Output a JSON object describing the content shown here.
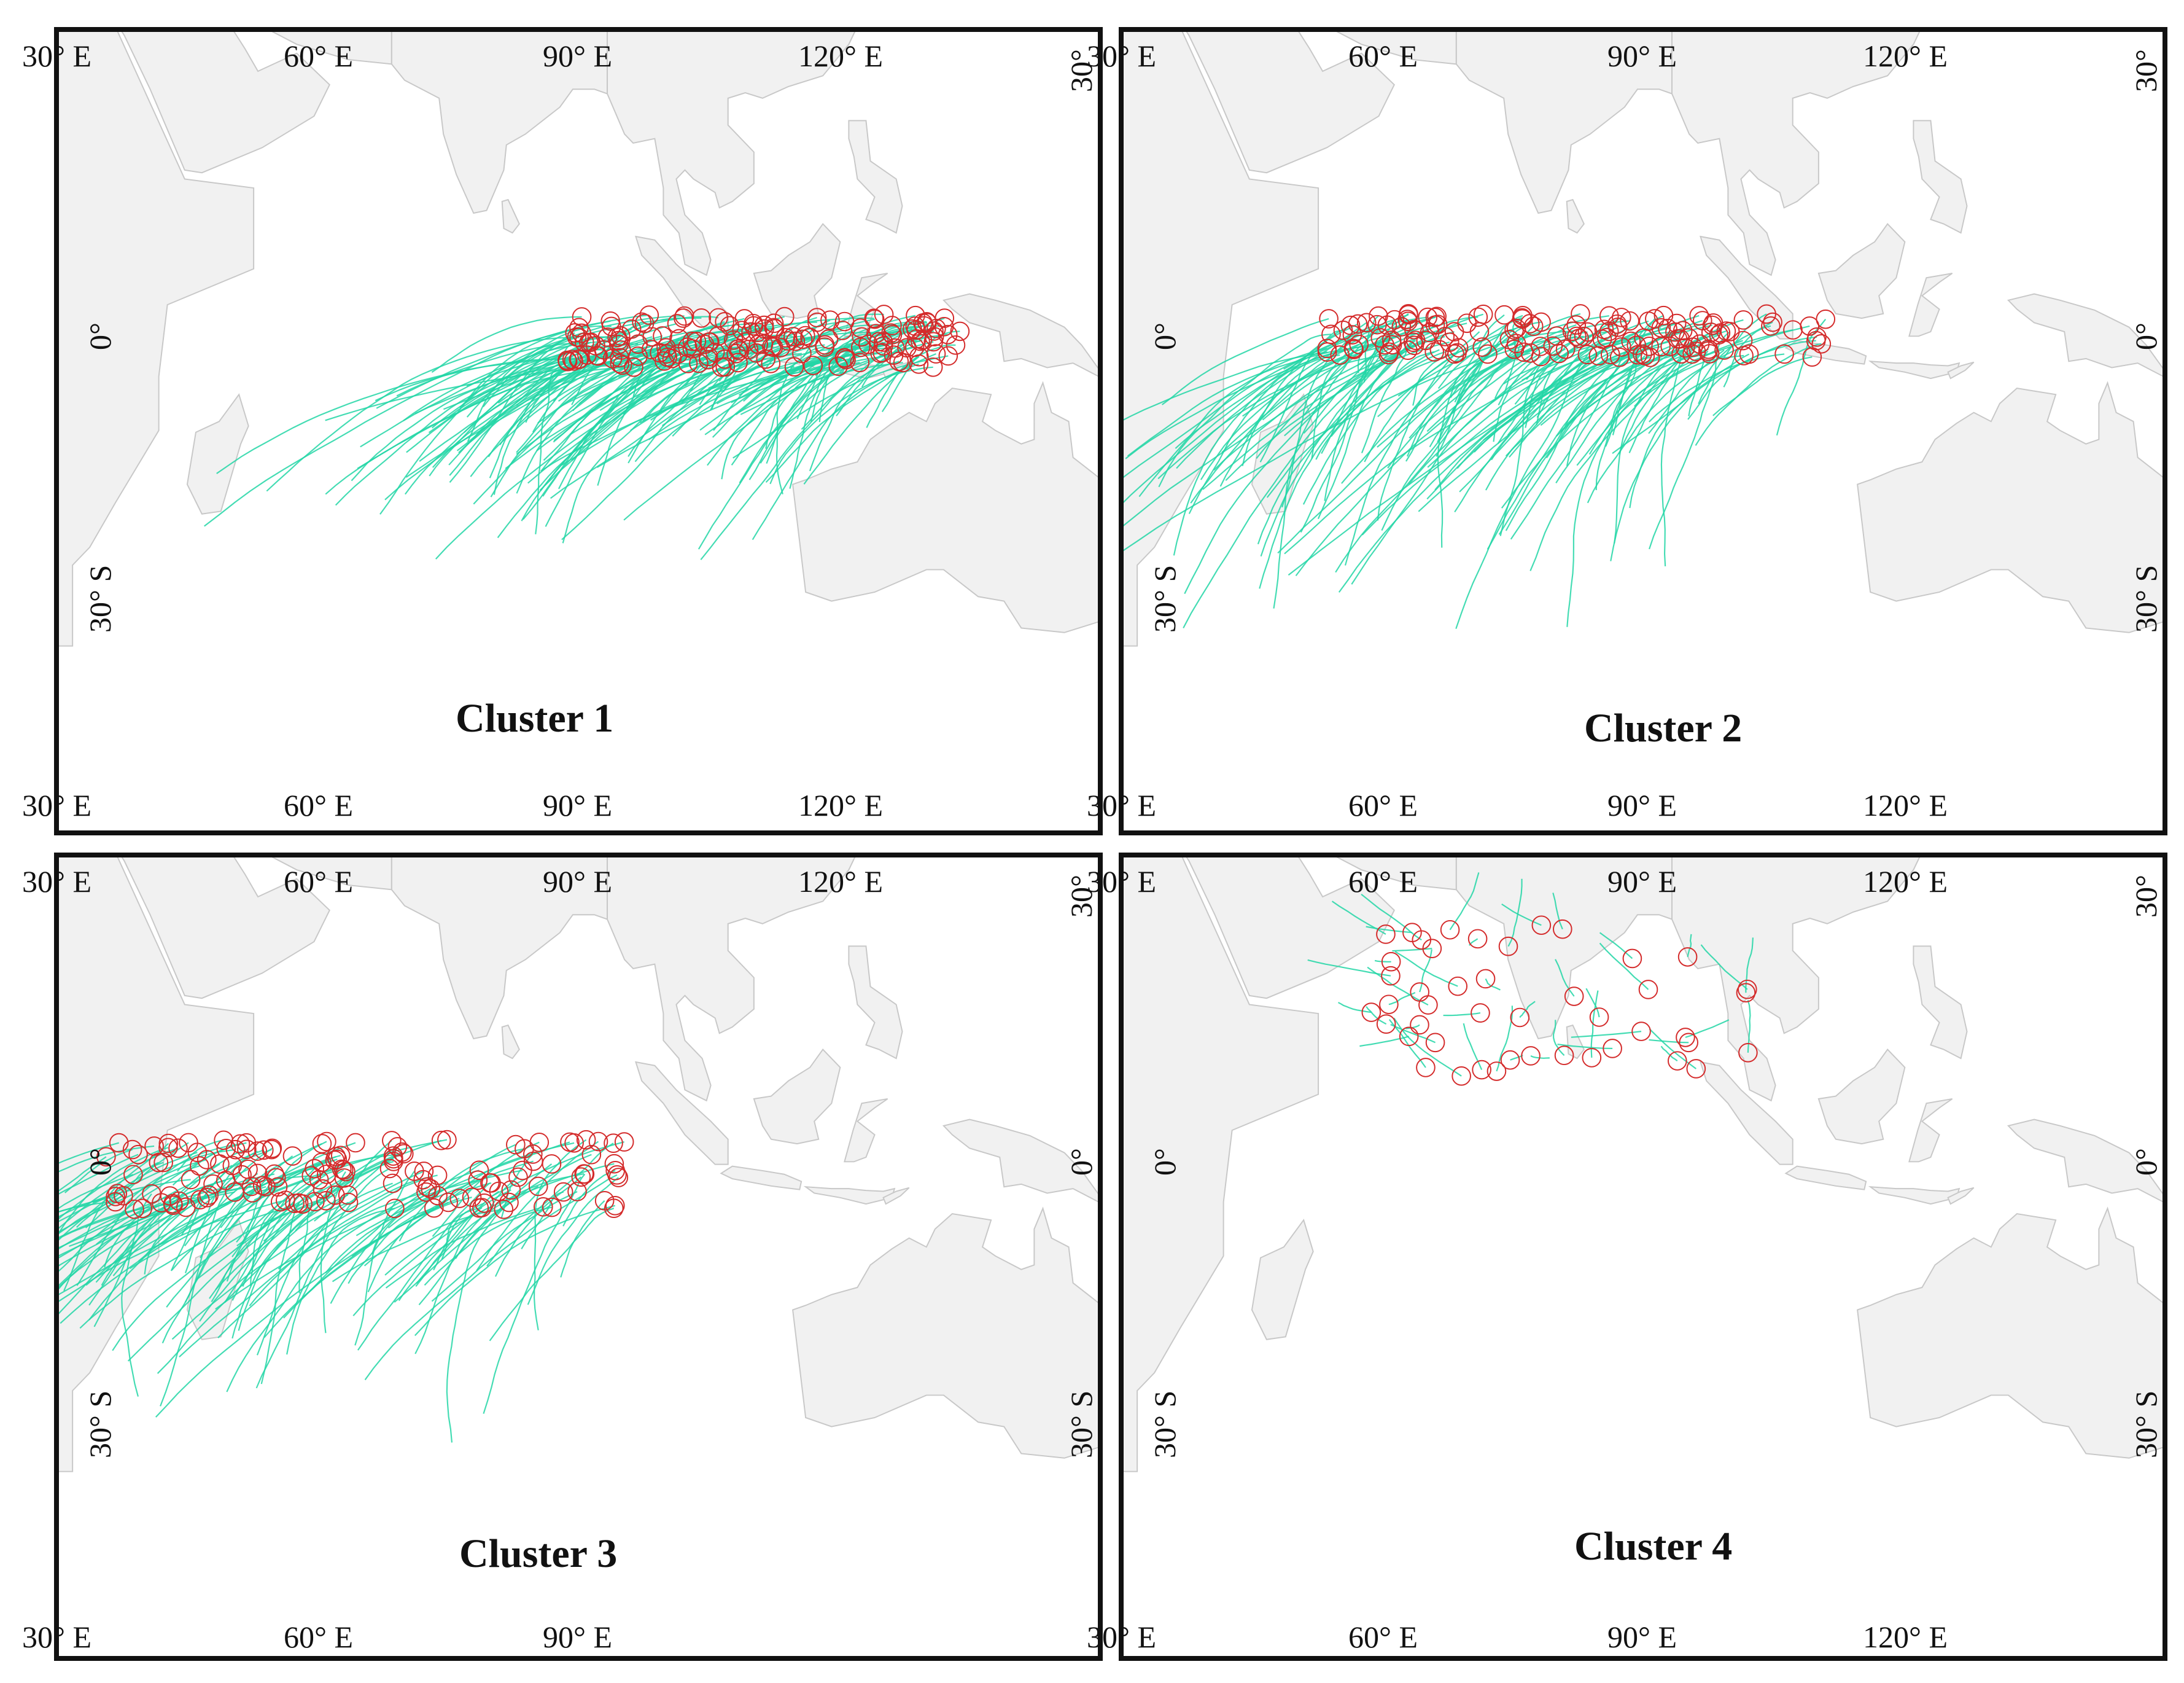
{
  "figure": {
    "panels": [
      {
        "title": "Cluster 1"
      },
      {
        "title": "Cluster 2"
      },
      {
        "title": "Cluster 3"
      },
      {
        "title": "Cluster 4"
      }
    ],
    "longitude_labels": [
      "30° E",
      "60° E",
      "90° E",
      "120° E"
    ],
    "latitude_labels": [
      "30°",
      "0°",
      "30° S"
    ],
    "colors": {
      "land": "#f1f1f1",
      "coast": "#c8c8c8",
      "track": "#22d6a6",
      "genesis_marker": "#d42b2b",
      "frame": "#111111"
    },
    "legend_symbols": {
      "track": "line",
      "genesis": "open circle"
    }
  }
}
